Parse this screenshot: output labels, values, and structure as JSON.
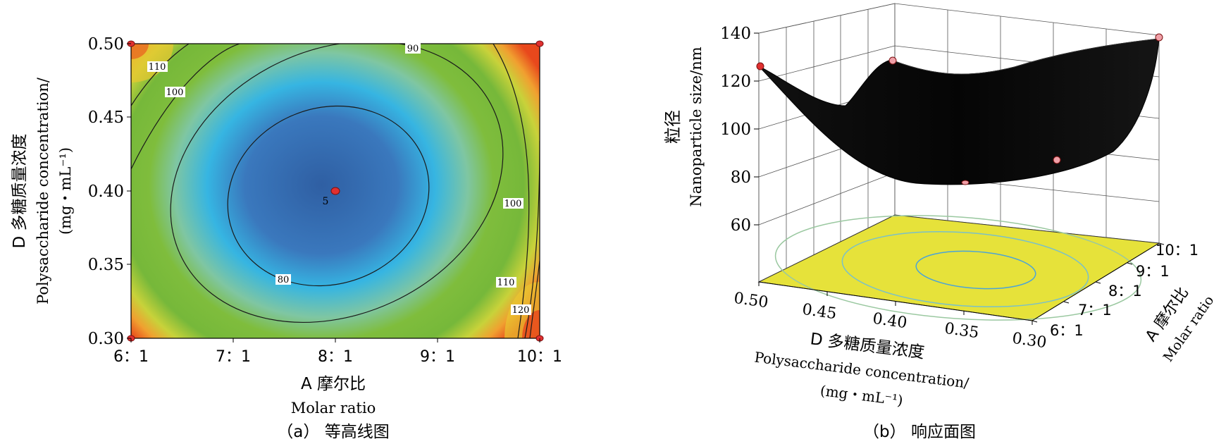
{
  "chart_data": [
    {
      "type": "contour",
      "caption": "（a）  等高线图",
      "xlabel_cn": "A 摩尔比",
      "xlabel_en": "Molar ratio",
      "ylabel_cn": "D 多糖质量浓度",
      "ylabel_en": "Polysaccharide concentration/",
      "ylabel_unit": "(mg・mL⁻¹)",
      "x_ticks": [
        "6：1",
        "7：1",
        "8：1",
        "9：1",
        "10：1"
      ],
      "y_ticks": [
        "0.30",
        "0.35",
        "0.40",
        "0.45",
        "0.50"
      ],
      "xlim": [
        6,
        10
      ],
      "ylim": [
        0.3,
        0.5
      ],
      "contour_levels": [
        {
          "level": 80,
          "label": "80"
        },
        {
          "level": 90,
          "label": "90"
        },
        {
          "level": 100,
          "label": "100"
        },
        {
          "level": 110,
          "label": "110"
        },
        {
          "level": 120,
          "label": "120"
        }
      ],
      "design_points": [
        {
          "x": 6,
          "y": 0.5
        },
        {
          "x": 10,
          "y": 0.5
        },
        {
          "x": 6,
          "y": 0.3
        },
        {
          "x": 10,
          "y": 0.3
        },
        {
          "x": 8,
          "y": 0.4,
          "label": "5"
        }
      ],
      "center_label": "5"
    },
    {
      "type": "surface",
      "caption": "（b）  响应面图",
      "zlabel_cn": "粒径",
      "zlabel_en": "Nanoparticle size/nm",
      "z_ticks": [
        "60",
        "80",
        "100",
        "120",
        "140"
      ],
      "zlim": [
        60,
        140
      ],
      "xlabel_cn": "D 多糖质量浓度",
      "xlabel_en": "Polysaccharide concentration/",
      "xlabel_unit": "(mg・mL⁻¹)",
      "x_ticks": [
        "0.50",
        "0.45",
        "0.40",
        "0.35",
        "0.30"
      ],
      "ylabel_cn": "A 摩尔比",
      "ylabel_en": "Molar ratio",
      "y_ticks": [
        "6：1",
        "7：1",
        "8：1",
        "9：1",
        "10：1"
      ]
    }
  ],
  "colors": {
    "contour_low": "#2f63a8",
    "contour_mid": "#35b8e0",
    "contour_green": "#7dbd3a",
    "contour_high": "#e84a1c",
    "surface": "#000000",
    "floor": "#e6e23a",
    "floor_contour": "#4aa3d8",
    "point": "#e03030",
    "point_pink": "#f0a0a8"
  }
}
